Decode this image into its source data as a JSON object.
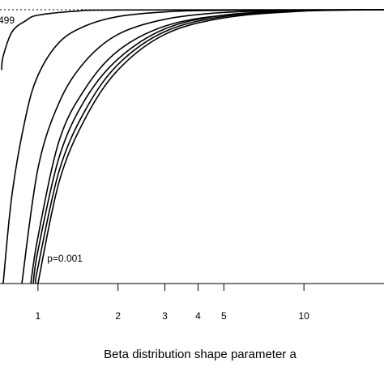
{
  "chart_data": {
    "type": "line",
    "title": "",
    "xlabel": "Beta distribution shape parameter a",
    "ylabel": "",
    "x_scale": "log",
    "xlim": [
      0.72,
      20
    ],
    "ylim": [
      0,
      1
    ],
    "x_ticks": [
      1,
      2,
      3,
      4,
      5,
      10
    ],
    "x_tick_labels": [
      "1",
      "2",
      "3",
      "4",
      "5",
      "10"
    ],
    "reference_line": {
      "y": 1,
      "style": "dotted"
    },
    "annotations": [
      {
        "text": "p=0.001",
        "attached_to": "rightmost curve (near x-axis)"
      },
      {
        "text": "499",
        "attached_to": "leftmost curve (top-left, clipped)"
      }
    ],
    "series": [
      {
        "values": [
          [
            0.73,
            0.78
          ],
          [
            0.74,
            0.83
          ],
          [
            0.8,
            0.92
          ],
          [
            0.9,
            0.96
          ],
          [
            1.0,
            0.98
          ],
          [
            1.4,
            0.995
          ],
          [
            2.0,
            0.999
          ],
          [
            20,
            1.0
          ]
        ]
      },
      {
        "values": [
          [
            0.74,
            0.0
          ],
          [
            0.8,
            0.33
          ],
          [
            0.9,
            0.61
          ],
          [
            1.0,
            0.76
          ],
          [
            1.2,
            0.88
          ],
          [
            1.5,
            0.94
          ],
          [
            2.0,
            0.975
          ],
          [
            3.0,
            0.992
          ],
          [
            5.0,
            0.998
          ],
          [
            20,
            1.0
          ]
        ]
      },
      {
        "values": [
          [
            0.87,
            0.0
          ],
          [
            1.0,
            0.42
          ],
          [
            1.2,
            0.66
          ],
          [
            1.5,
            0.81
          ],
          [
            2.0,
            0.91
          ],
          [
            3.0,
            0.965
          ],
          [
            5.0,
            0.99
          ],
          [
            10,
            0.998
          ],
          [
            20,
            1.0
          ]
        ]
      },
      {
        "values": [
          [
            0.94,
            0.0
          ],
          [
            1.0,
            0.17
          ],
          [
            1.2,
            0.52
          ],
          [
            1.5,
            0.71
          ],
          [
            2.0,
            0.85
          ],
          [
            3.0,
            0.94
          ],
          [
            5.0,
            0.98
          ],
          [
            10,
            0.997
          ],
          [
            20,
            1.0
          ]
        ]
      },
      {
        "values": [
          [
            0.96,
            0.0
          ],
          [
            1.0,
            0.12
          ],
          [
            1.2,
            0.46
          ],
          [
            1.5,
            0.67
          ],
          [
            2.0,
            0.82
          ],
          [
            3.0,
            0.93
          ],
          [
            5.0,
            0.98
          ],
          [
            10,
            0.997
          ],
          [
            20,
            1.0
          ]
        ]
      },
      {
        "values": [
          [
            0.98,
            0.0
          ],
          [
            1.0,
            0.06
          ],
          [
            1.2,
            0.41
          ],
          [
            1.5,
            0.63
          ],
          [
            2.0,
            0.8
          ],
          [
            3.0,
            0.92
          ],
          [
            5.0,
            0.975
          ],
          [
            10,
            0.996
          ],
          [
            20,
            1.0
          ]
        ]
      },
      {
        "values": [
          [
            1.0,
            0.0
          ],
          [
            1.2,
            0.37
          ],
          [
            1.5,
            0.6
          ],
          [
            2.0,
            0.78
          ],
          [
            3.0,
            0.91
          ],
          [
            5.0,
            0.97
          ],
          [
            10,
            0.995
          ],
          [
            20,
            1.0
          ]
        ]
      }
    ]
  }
}
